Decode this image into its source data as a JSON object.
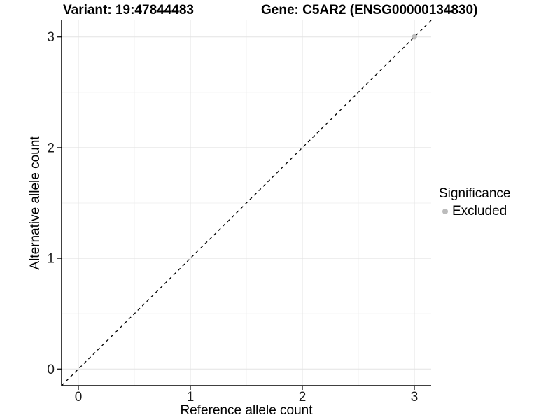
{
  "title": {
    "variant": "Variant: 19:47844483",
    "gene": "Gene: C5AR2 (ENSG00000134830)"
  },
  "legend": {
    "title": "Significance",
    "items": [
      {
        "label": "Excluded",
        "color": "#bcbcbc"
      }
    ]
  },
  "colors": {
    "background": "#ffffff",
    "grid_major": "#e3e3e3",
    "grid_minor": "#f1f1f1",
    "axis_line": "#000000",
    "tick_mark": "#000000",
    "tick_label": "#1a1a1a",
    "identity_line": "#000000",
    "excluded_point": "#bcbcbc"
  },
  "chart_data": {
    "type": "scatter",
    "title": "Variant: 19:47844483        Gene: C5AR2 (ENSG00000134830)",
    "xlabel": "Reference allele count",
    "ylabel": "Alternative allele count",
    "xlim": [
      -0.15,
      3.15
    ],
    "ylim": [
      -0.15,
      3.15
    ],
    "x_ticks": [
      0,
      1,
      2,
      3
    ],
    "y_ticks": [
      0,
      1,
      2,
      3
    ],
    "x_minor_ticks": [
      0.5,
      1.5,
      2.5
    ],
    "y_minor_ticks": [
      0.5,
      1.5,
      2.5
    ],
    "grid": true,
    "legend_position": "right",
    "identity_line": {
      "slope": 1,
      "intercept": 0,
      "style": "dashed",
      "color": "#000000"
    },
    "series": [
      {
        "name": "Excluded",
        "color": "#bcbcbc",
        "points": [
          {
            "x": 3,
            "y": 3
          }
        ]
      }
    ]
  }
}
